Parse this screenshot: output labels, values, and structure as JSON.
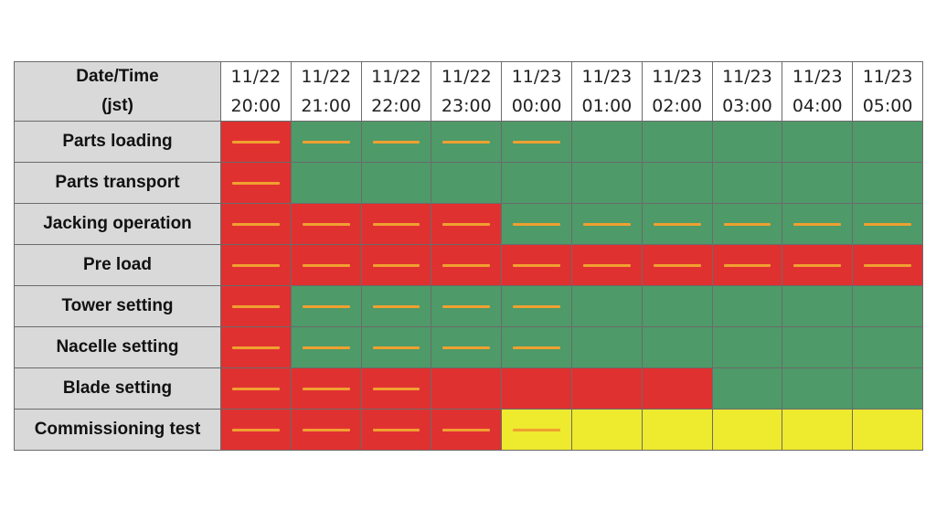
{
  "header": {
    "label_line1": "Date/Time",
    "label_line2": "(jst)",
    "columns": [
      {
        "date": "11/22",
        "time": "20:00"
      },
      {
        "date": "11/22",
        "time": "21:00"
      },
      {
        "date": "11/22",
        "time": "22:00"
      },
      {
        "date": "11/22",
        "time": "23:00"
      },
      {
        "date": "11/23",
        "time": "00:00"
      },
      {
        "date": "11/23",
        "time": "01:00"
      },
      {
        "date": "11/23",
        "time": "02:00"
      },
      {
        "date": "11/23",
        "time": "03:00"
      },
      {
        "date": "11/23",
        "time": "04:00"
      },
      {
        "date": "11/23",
        "time": "05:00"
      }
    ]
  },
  "status_colors": {
    "red": "#e03131",
    "green": "#4e9a68",
    "yellow": "#eeea2e"
  },
  "dash_color": "#f0a030",
  "tasks": [
    {
      "name": "Parts loading",
      "status": [
        "red",
        "green",
        "green",
        "green",
        "green",
        "green",
        "green",
        "green",
        "green",
        "green"
      ],
      "dash": [
        true,
        true,
        true,
        true,
        true,
        false,
        false,
        false,
        false,
        false
      ]
    },
    {
      "name": "Parts transport",
      "status": [
        "red",
        "green",
        "green",
        "green",
        "green",
        "green",
        "green",
        "green",
        "green",
        "green"
      ],
      "dash": [
        true,
        false,
        false,
        false,
        false,
        false,
        false,
        false,
        false,
        false
      ]
    },
    {
      "name": "Jacking operation",
      "status": [
        "red",
        "red",
        "red",
        "red",
        "green",
        "green",
        "green",
        "green",
        "green",
        "green"
      ],
      "dash": [
        true,
        true,
        true,
        true,
        true,
        true,
        true,
        true,
        true,
        true
      ]
    },
    {
      "name": "Pre load",
      "status": [
        "red",
        "red",
        "red",
        "red",
        "red",
        "red",
        "red",
        "red",
        "red",
        "red"
      ],
      "dash": [
        true,
        true,
        true,
        true,
        true,
        true,
        true,
        true,
        true,
        true
      ]
    },
    {
      "name": "Tower setting",
      "status": [
        "red",
        "green",
        "green",
        "green",
        "green",
        "green",
        "green",
        "green",
        "green",
        "green"
      ],
      "dash": [
        true,
        true,
        true,
        true,
        true,
        false,
        false,
        false,
        false,
        false
      ]
    },
    {
      "name": "Nacelle setting",
      "status": [
        "red",
        "green",
        "green",
        "green",
        "green",
        "green",
        "green",
        "green",
        "green",
        "green"
      ],
      "dash": [
        true,
        true,
        true,
        true,
        true,
        false,
        false,
        false,
        false,
        false
      ]
    },
    {
      "name": "Blade setting",
      "status": [
        "red",
        "red",
        "red",
        "red",
        "red",
        "red",
        "red",
        "green",
        "green",
        "green"
      ],
      "dash": [
        true,
        true,
        true,
        false,
        false,
        false,
        false,
        false,
        false,
        false
      ]
    },
    {
      "name": "Commissioning test",
      "status": [
        "red",
        "red",
        "red",
        "red",
        "yellow",
        "yellow",
        "yellow",
        "yellow",
        "yellow",
        "yellow"
      ],
      "dash": [
        true,
        true,
        true,
        true,
        true,
        false,
        false,
        false,
        false,
        false
      ]
    }
  ]
}
